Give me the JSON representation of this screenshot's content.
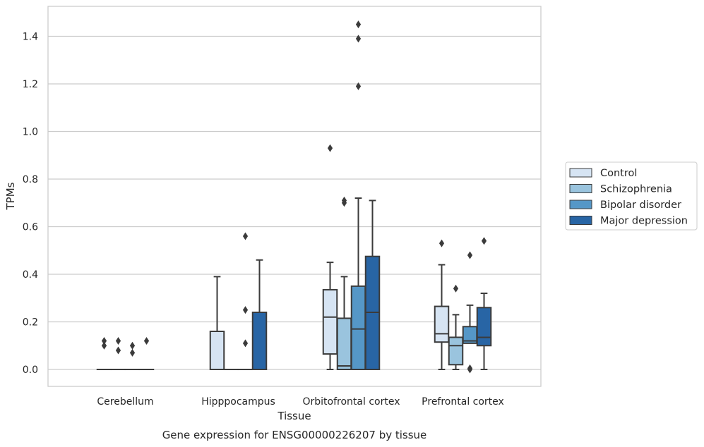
{
  "chart_data": {
    "type": "boxplot",
    "caption": "Gene expression for ENSG00000226207 by tissue",
    "xlabel": "Tissue",
    "ylabel": "TPMs",
    "ylim": [
      -0.07,
      1.53
    ],
    "yticks": [
      0.0,
      0.2,
      0.4,
      0.6,
      0.8,
      1.0,
      1.2,
      1.4
    ],
    "ytick_labels": [
      "0.0",
      "0.2",
      "0.4",
      "0.6",
      "0.8",
      "1.0",
      "1.2",
      "1.4"
    ],
    "grid": "horizontal",
    "legend_position": "right",
    "categories": [
      "Cerebellum",
      "Hipppocampus",
      "Orbitofrontal cortex",
      "Prefrontal cortex"
    ],
    "series": [
      {
        "name": "Control",
        "color": "#d6e4f3",
        "boxes": [
          {
            "q1": 0.0,
            "median": 0.0,
            "q3": 0.0,
            "whislo": 0.0,
            "whishi": 0.0,
            "fliers": [
              0.1,
              0.12
            ]
          },
          {
            "q1": 0.0,
            "median": 0.0,
            "q3": 0.16,
            "whislo": 0.0,
            "whishi": 0.39,
            "fliers": []
          },
          {
            "q1": 0.065,
            "median": 0.22,
            "q3": 0.335,
            "whislo": 0.0,
            "whishi": 0.45,
            "fliers": [
              0.93
            ]
          },
          {
            "q1": 0.115,
            "median": 0.15,
            "q3": 0.265,
            "whislo": 0.0,
            "whishi": 0.44,
            "fliers": [
              0.53
            ]
          }
        ]
      },
      {
        "name": "Schizophrenia",
        "color": "#9ac4de",
        "boxes": [
          {
            "q1": 0.0,
            "median": 0.0,
            "q3": 0.0,
            "whislo": 0.0,
            "whishi": 0.0,
            "fliers": [
              0.08,
              0.12
            ]
          },
          {
            "q1": 0.0,
            "median": 0.0,
            "q3": 0.0,
            "whislo": 0.0,
            "whishi": 0.0,
            "fliers": []
          },
          {
            "q1": 0.0,
            "median": 0.015,
            "q3": 0.215,
            "whislo": 0.0,
            "whishi": 0.39,
            "fliers": [
              0.7,
              0.71
            ]
          },
          {
            "q1": 0.02,
            "median": 0.1,
            "q3": 0.135,
            "whislo": 0.0,
            "whishi": 0.23,
            "fliers": [
              0.34
            ]
          }
        ]
      },
      {
        "name": "Bipolar disorder",
        "color": "#5597c7",
        "boxes": [
          {
            "q1": 0.0,
            "median": 0.0,
            "q3": 0.0,
            "whislo": 0.0,
            "whishi": 0.0,
            "fliers": [
              0.07,
              0.1
            ]
          },
          {
            "q1": 0.0,
            "median": 0.0,
            "q3": 0.0,
            "whislo": 0.0,
            "whishi": 0.0,
            "fliers": [
              0.11,
              0.25,
              0.56
            ]
          },
          {
            "q1": 0.0,
            "median": 0.17,
            "q3": 0.35,
            "whislo": 0.0,
            "whishi": 0.72,
            "fliers": [
              1.19,
              1.39,
              1.45
            ]
          },
          {
            "q1": 0.11,
            "median": 0.12,
            "q3": 0.18,
            "whislo": 0.11,
            "whishi": 0.27,
            "fliers": [
              0.0,
              0.005,
              0.48
            ]
          }
        ]
      },
      {
        "name": "Major depression",
        "color": "#2865a5",
        "boxes": [
          {
            "q1": 0.0,
            "median": 0.0,
            "q3": 0.0,
            "whislo": 0.0,
            "whishi": 0.0,
            "fliers": [
              0.12
            ]
          },
          {
            "q1": 0.0,
            "median": 0.0,
            "q3": 0.24,
            "whislo": 0.0,
            "whishi": 0.46,
            "fliers": []
          },
          {
            "q1": 0.0,
            "median": 0.24,
            "q3": 0.475,
            "whislo": 0.0,
            "whishi": 0.71,
            "fliers": []
          },
          {
            "q1": 0.1,
            "median": 0.135,
            "q3": 0.26,
            "whislo": 0.0,
            "whishi": 0.32,
            "fliers": [
              0.54
            ]
          }
        ]
      }
    ]
  }
}
